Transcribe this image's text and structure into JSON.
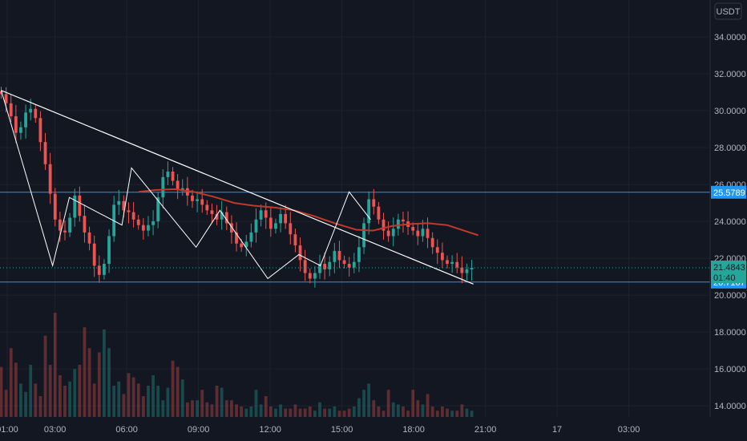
{
  "currency_button": {
    "label": "USDT"
  },
  "chart_data": {
    "type": "candlestick",
    "ylim": [
      13.4,
      36.0
    ],
    "yticks": [
      14,
      16,
      18,
      20,
      22,
      24,
      26,
      28,
      30,
      32,
      34
    ],
    "ytick_labels": [
      "14.0000",
      "16.0000",
      "18.0000",
      "20.0000",
      "22.0000",
      "24.0000",
      "26.0000",
      "28.0000",
      "30.0000",
      "32.0000",
      "34.0000"
    ],
    "xlim_hours": [
      0.7,
      30.4
    ],
    "xtick_labels": [
      {
        "label": "01:00",
        "hour": 1
      },
      {
        "label": "03:00",
        "hour": 3
      },
      {
        "label": "06:00",
        "hour": 6
      },
      {
        "label": "09:00",
        "hour": 9
      },
      {
        "label": "12:00",
        "hour": 12
      },
      {
        "label": "15:00",
        "hour": 15
      },
      {
        "label": "18:00",
        "hour": 18
      },
      {
        "label": "21:00",
        "hour": 21
      },
      {
        "label": "17",
        "hour": 24
      },
      {
        "label": "03:00",
        "hour": 27
      }
    ],
    "colors": {
      "up": "#26a69a",
      "down": "#ef5350",
      "ma": "#c0392b",
      "hline": "#2196f3",
      "trend": "#ffffff"
    },
    "candles_close": [
      30.9,
      30.4,
      29.7,
      28.8,
      29.1,
      29.9,
      30.1,
      29.6,
      28.3,
      27.1,
      25.5,
      24.1,
      23.5,
      23.4,
      24.2,
      25.4,
      24.3,
      23.4,
      22.8,
      21.6,
      21.1,
      21.7,
      23.2,
      24.9,
      25.1,
      24.6,
      24.5,
      24.1,
      23.8,
      23.5,
      23.8,
      24.0,
      25.3,
      26.4,
      26.7,
      26.2,
      25.7,
      25.8,
      25.4,
      25.1,
      25.2,
      24.9,
      24.6,
      24.4,
      24.1,
      24.5,
      23.9,
      23.4,
      22.8,
      22.6,
      22.9,
      23.4,
      24.1,
      24.6,
      24.2,
      23.6,
      23.9,
      24.4,
      23.9,
      23.3,
      22.7,
      21.9,
      21.2,
      20.9,
      21.2,
      21.7,
      21.4,
      21.8,
      22.4,
      21.9,
      21.7,
      21.5,
      21.8,
      22.6,
      23.9,
      25.2,
      24.8,
      24.1,
      23.5,
      23.2,
      23.6,
      24.1,
      24.0,
      23.7,
      23.5,
      23.2,
      23.6,
      23.1,
      22.6,
      22.3,
      21.9,
      21.7,
      21.8,
      21.5,
      21.2,
      21.4,
      21.4843
    ],
    "volumes": [
      2.4,
      1.3,
      3.3,
      2.6,
      1.6,
      1.2,
      2.5,
      1.6,
      1.0,
      3.9,
      2.5,
      5.0,
      2.0,
      1.5,
      1.7,
      2.3,
      2.5,
      4.3,
      3.3,
      1.6,
      3.1,
      4.2,
      3.3,
      1.5,
      1.7,
      1.1,
      2.1,
      1.9,
      1.6,
      1.0,
      1.5,
      2.0,
      1.5,
      0.8,
      1.4,
      2.7,
      2.4,
      1.8,
      0.7,
      0.8,
      0.8,
      1.3,
      0.7,
      0.6,
      1.5,
      1.4,
      0.8,
      0.8,
      0.6,
      0.5,
      0.4,
      0.5,
      1.3,
      0.6,
      1.0,
      0.5,
      0.4,
      0.6,
      0.4,
      0.4,
      0.6,
      0.4,
      0.4,
      0.5,
      0.3,
      0.7,
      0.4,
      0.4,
      0.5,
      0.3,
      0.3,
      0.4,
      0.5,
      0.9,
      1.3,
      1.6,
      0.8,
      0.5,
      0.3,
      1.3,
      0.7,
      0.6,
      0.5,
      0.3,
      1.3,
      0.8,
      0.6,
      1.1,
      0.5,
      0.3,
      0.5,
      0.4,
      0.3,
      0.3,
      0.6,
      0.4,
      0.3
    ],
    "volume_ylim": [
      0,
      20
    ],
    "trendline": {
      "from": {
        "hour": 0.75,
        "value": 31.1
      },
      "to": {
        "hour": 20.5,
        "value": 20.6
      }
    },
    "horizontal_levels": [
      {
        "value": 25.5789,
        "label": "25.5789"
      },
      {
        "value": 20.7107,
        "label": "20.7107"
      }
    ],
    "current_price": {
      "value": 21.4843,
      "label": "21.4843",
      "countdown": "01:40"
    },
    "zigzag": [
      {
        "hour": 0.75,
        "value": 31.1
      },
      {
        "hour": 2.9,
        "value": 21.6
      },
      {
        "hour": 3.6,
        "value": 25.3
      },
      {
        "hour": 5.8,
        "value": 23.8
      },
      {
        "hour": 6.2,
        "value": 26.9
      },
      {
        "hour": 8.9,
        "value": 22.6
      },
      {
        "hour": 9.9,
        "value": 24.6
      },
      {
        "hour": 11.9,
        "value": 20.9
      },
      {
        "hour": 13.2,
        "value": 22.2
      },
      {
        "hour": 14.1,
        "value": 21.6
      },
      {
        "hour": 15.3,
        "value": 25.6
      },
      {
        "hour": 16.2,
        "value": 24.1
      }
    ],
    "ma_series": [
      {
        "hour": 6.5,
        "value": 25.6
      },
      {
        "hour": 7.2,
        "value": 25.7
      },
      {
        "hour": 8.0,
        "value": 25.75
      },
      {
        "hour": 8.8,
        "value": 25.6
      },
      {
        "hour": 9.6,
        "value": 25.35
      },
      {
        "hour": 10.5,
        "value": 25.0
      },
      {
        "hour": 11.3,
        "value": 24.85
      },
      {
        "hour": 12.2,
        "value": 24.75
      },
      {
        "hour": 13.0,
        "value": 24.6
      },
      {
        "hour": 13.8,
        "value": 24.3
      },
      {
        "hour": 14.7,
        "value": 23.9
      },
      {
        "hour": 15.6,
        "value": 23.55
      },
      {
        "hour": 16.3,
        "value": 23.5
      },
      {
        "hour": 17.1,
        "value": 23.75
      },
      {
        "hour": 17.8,
        "value": 23.85
      },
      {
        "hour": 18.6,
        "value": 23.9
      },
      {
        "hour": 19.4,
        "value": 23.8
      },
      {
        "hour": 20.1,
        "value": 23.5
      },
      {
        "hour": 20.7,
        "value": 23.25
      }
    ]
  }
}
